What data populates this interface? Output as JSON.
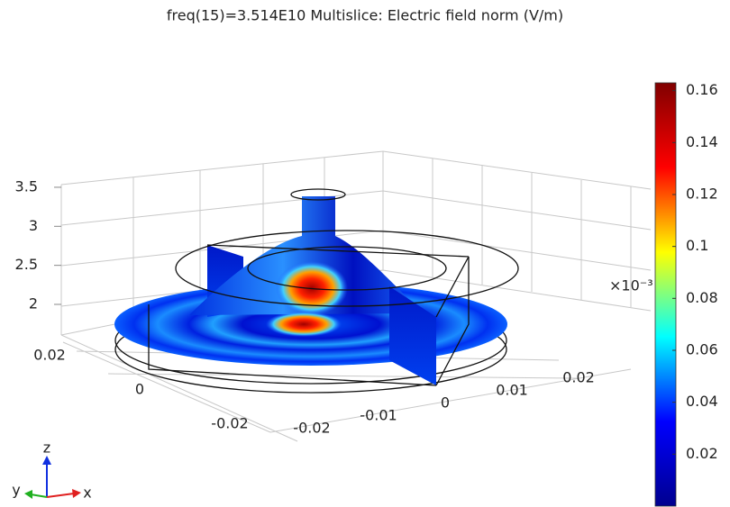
{
  "chart_data": {
    "type": "field-plot",
    "title": "freq(15)=3.514E10   Multislice: Electric field norm (V/m)",
    "colormap": "jet",
    "clim": [
      0,
      0.163
    ],
    "cticks": [
      0.02,
      0.04,
      0.06,
      0.08,
      0.1,
      0.12,
      0.14,
      0.16
    ],
    "zticks": [
      2,
      2.5,
      3,
      3.5
    ],
    "z_exponent": "×10⁻³",
    "xticks": [
      -0.02,
      -0.01,
      0,
      0.01,
      0.02
    ],
    "yticks": [
      -0.02,
      0,
      0.02
    ],
    "triad": {
      "x": "x",
      "y": "y",
      "z": "z"
    }
  }
}
